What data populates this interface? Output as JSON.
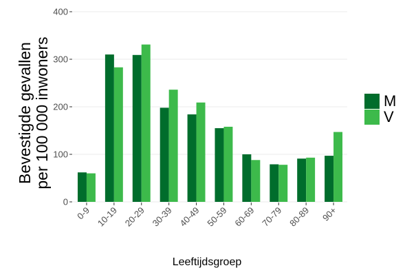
{
  "chart_data": {
    "type": "bar",
    "categories": [
      "0-9",
      "10-19",
      "20-29",
      "30-39",
      "40-49",
      "50-59",
      "60-69",
      "70-79",
      "80-89",
      "90+"
    ],
    "series": [
      {
        "name": "M",
        "color": "#006d2c",
        "values": [
          62,
          310,
          309,
          198,
          184,
          155,
          100,
          79,
          91,
          97
        ]
      },
      {
        "name": "V",
        "color": "#3dba4b",
        "values": [
          60,
          283,
          331,
          236,
          209,
          158,
          88,
          78,
          93,
          147
        ]
      }
    ],
    "ylabel_line1": "Bevestigde gevallen",
    "ylabel_line2": "per 100 000 inwoners",
    "xlabel": "Leeftijdsgroep",
    "ylim": [
      0,
      400
    ],
    "yticks": [
      0,
      100,
      200,
      300,
      400
    ],
    "grid": true,
    "legend_position": "right"
  }
}
